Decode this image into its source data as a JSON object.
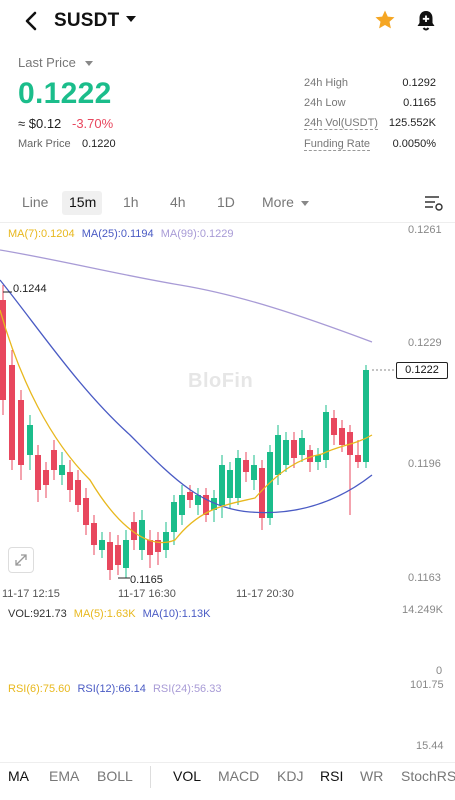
{
  "header": {
    "symbol": "SUSDT"
  },
  "price": {
    "label": "Last Price",
    "value": "0.1222",
    "usd": "≈ $0.12",
    "change": "-3.70%",
    "mark_label": "Mark Price",
    "mark_value": "0.1220"
  },
  "stats": [
    {
      "label": "24h High",
      "value": "0.1292"
    },
    {
      "label": "24h Low",
      "value": "0.1165"
    },
    {
      "label": "24h Vol(USDT)",
      "value": "125.552K"
    },
    {
      "label": "Funding Rate",
      "value": "0.0050%"
    }
  ],
  "tabs": [
    "Line",
    "15m",
    "1h",
    "4h",
    "1D",
    "More"
  ],
  "active_tab": "15m",
  "chart": {
    "ma_legend": {
      "ma7": "MA(7):0.1204",
      "ma25": "MA(25):0.1194",
      "ma99": "MA(99):0.1229"
    },
    "y_labels": [
      "0.1261",
      "0.1229",
      "0.1196",
      "0.1163"
    ],
    "last_price_tag": "0.1222",
    "high_annotation": "0.1244",
    "low_annotation": "0.1165",
    "x_labels": [
      "11-17 12:15",
      "11-17 16:30",
      "11-17 20:30"
    ],
    "watermark": "BloFin",
    "colors": {
      "up": "#1bbd8b",
      "down": "#e8475e",
      "ma7": "#e8b81e",
      "ma25": "#4a5bc4",
      "ma99": "#a89bd6"
    }
  },
  "volume": {
    "legend": {
      "vol": "VOL:921.73",
      "ma5": "MA(5):1.63K",
      "ma10": "MA(10):1.13K"
    },
    "y_labels": [
      "14.249K",
      "0"
    ]
  },
  "rsi": {
    "legend": {
      "rsi6": "RSI(6):75.60",
      "rsi12": "RSI(12):66.14",
      "rsi24": "RSI(24):56.33"
    },
    "y_labels": [
      "101.75",
      "15.44"
    ]
  },
  "bottom_tabs": [
    "MA",
    "EMA",
    "BOLL",
    "VOL",
    "MACD",
    "KDJ",
    "RSI",
    "WR",
    "StochRSI"
  ],
  "icons": {
    "back": "chevron-left-icon",
    "favorite": "star-icon",
    "alert": "bell-plus-icon",
    "settings": "settings-icon",
    "expand": "expand-icon"
  }
}
